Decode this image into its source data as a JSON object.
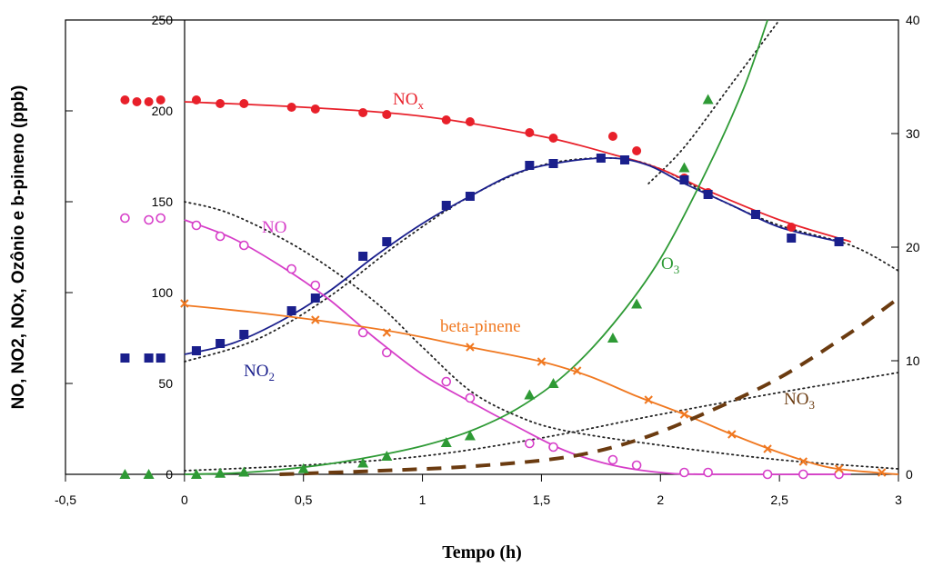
{
  "chart_data": {
    "type": "line",
    "xlabel": "Tempo (h)",
    "ylabel": "NO, NO2, NOx, Ozônio e b-pineno (ppb)",
    "xlim": [
      -0.5,
      3
    ],
    "ylim": [
      0,
      250
    ],
    "y2lim": [
      0,
      40
    ],
    "xticks": [
      "-0,5",
      "0",
      "0,5",
      "1",
      "1,5",
      "2",
      "2,5",
      "3"
    ],
    "yticks": [
      "0",
      "50",
      "100",
      "150",
      "200",
      "250"
    ],
    "y2ticks": [
      "0",
      "10",
      "20",
      "30",
      "40"
    ],
    "series": [
      {
        "name": "NOx",
        "color": "#e8202a",
        "marker": "filled-circle",
        "axis": "left",
        "points": [
          [
            -0.25,
            206
          ],
          [
            -0.2,
            205
          ],
          [
            -0.15,
            205
          ],
          [
            -0.1,
            206
          ],
          [
            0.05,
            206
          ],
          [
            0.15,
            204
          ],
          [
            0.25,
            204
          ],
          [
            0.45,
            202
          ],
          [
            0.55,
            201
          ],
          [
            0.75,
            199
          ],
          [
            0.85,
            198
          ],
          [
            1.1,
            195
          ],
          [
            1.2,
            194
          ],
          [
            1.45,
            188
          ],
          [
            1.55,
            185
          ],
          [
            1.8,
            186
          ],
          [
            1.9,
            178
          ],
          [
            2.1,
            163
          ],
          [
            2.2,
            155
          ],
          [
            2.4,
            143
          ],
          [
            2.55,
            136
          ],
          [
            2.75,
            128
          ]
        ],
        "fit": [
          [
            0,
            205
          ],
          [
            0.5,
            202
          ],
          [
            1,
            197
          ],
          [
            1.5,
            186
          ],
          [
            1.8,
            176
          ],
          [
            2,
            168
          ],
          [
            2.2,
            156
          ],
          [
            2.5,
            140
          ],
          [
            2.8,
            128
          ]
        ]
      },
      {
        "name": "NO2",
        "color": "#1a1f8c",
        "marker": "filled-square",
        "axis": "left",
        "points": [
          [
            -0.25,
            64
          ],
          [
            -0.15,
            64
          ],
          [
            -0.1,
            64
          ],
          [
            0.05,
            68
          ],
          [
            0.15,
            72
          ],
          [
            0.25,
            77
          ],
          [
            0.45,
            90
          ],
          [
            0.55,
            97
          ],
          [
            0.75,
            120
          ],
          [
            0.85,
            128
          ],
          [
            1.1,
            148
          ],
          [
            1.2,
            153
          ],
          [
            1.45,
            170
          ],
          [
            1.55,
            171
          ],
          [
            1.75,
            174
          ],
          [
            1.85,
            173
          ],
          [
            2.1,
            162
          ],
          [
            2.2,
            154
          ],
          [
            2.4,
            143
          ],
          [
            2.55,
            130
          ],
          [
            2.75,
            128
          ]
        ],
        "fit": [
          [
            0,
            66
          ],
          [
            0.2,
            72
          ],
          [
            0.4,
            84
          ],
          [
            0.6,
            100
          ],
          [
            0.8,
            120
          ],
          [
            1,
            138
          ],
          [
            1.2,
            153
          ],
          [
            1.4,
            166
          ],
          [
            1.6,
            172
          ],
          [
            1.8,
            174
          ],
          [
            1.95,
            170
          ],
          [
            2.1,
            160
          ],
          [
            2.3,
            148
          ],
          [
            2.5,
            136
          ],
          [
            2.75,
            128
          ]
        ]
      },
      {
        "name": "NO",
        "color": "#d63ec8",
        "marker": "open-circle",
        "axis": "left",
        "points": [
          [
            -0.25,
            141
          ],
          [
            -0.15,
            140
          ],
          [
            -0.1,
            141
          ],
          [
            0.05,
            137
          ],
          [
            0.15,
            131
          ],
          [
            0.25,
            126
          ],
          [
            0.45,
            113
          ],
          [
            0.55,
            104
          ],
          [
            0.75,
            78
          ],
          [
            0.85,
            67
          ],
          [
            1.1,
            51
          ],
          [
            1.2,
            42
          ],
          [
            1.45,
            17
          ],
          [
            1.55,
            15
          ],
          [
            1.8,
            8
          ],
          [
            1.9,
            5
          ],
          [
            2.1,
            1
          ],
          [
            2.2,
            1
          ],
          [
            2.45,
            0
          ],
          [
            2.6,
            0
          ],
          [
            2.75,
            0
          ]
        ],
        "fit": [
          [
            0,
            140
          ],
          [
            0.2,
            130
          ],
          [
            0.4,
            115
          ],
          [
            0.6,
            97
          ],
          [
            0.8,
            75
          ],
          [
            1,
            55
          ],
          [
            1.2,
            40
          ],
          [
            1.4,
            26
          ],
          [
            1.6,
            13
          ],
          [
            1.8,
            5
          ],
          [
            2,
            1
          ],
          [
            2.2,
            0
          ],
          [
            2.8,
            0
          ]
        ]
      },
      {
        "name": "O3",
        "color": "#2e9a35",
        "marker": "filled-triangle",
        "axis": "right",
        "points": [
          [
            -0.25,
            0
          ],
          [
            -0.15,
            0
          ],
          [
            0.05,
            0
          ],
          [
            0.15,
            0.1
          ],
          [
            0.25,
            0.2
          ],
          [
            0.5,
            0.5
          ],
          [
            0.75,
            1
          ],
          [
            0.85,
            1.6
          ],
          [
            1.1,
            2.8
          ],
          [
            1.2,
            3.4
          ],
          [
            1.45,
            7
          ],
          [
            1.55,
            8
          ],
          [
            1.8,
            12
          ],
          [
            1.9,
            15
          ],
          [
            2.1,
            27
          ],
          [
            2.2,
            33
          ]
        ],
        "fit": [
          [
            0,
            0
          ],
          [
            0.2,
            0.1
          ],
          [
            0.4,
            0.4
          ],
          [
            0.6,
            0.9
          ],
          [
            0.8,
            1.6
          ],
          [
            1,
            2.5
          ],
          [
            1.2,
            3.8
          ],
          [
            1.4,
            5.8
          ],
          [
            1.6,
            8.8
          ],
          [
            1.8,
            13.2
          ],
          [
            2,
            19
          ],
          [
            2.2,
            27
          ],
          [
            2.35,
            34
          ],
          [
            2.45,
            40
          ]
        ]
      },
      {
        "name": "beta-pinene",
        "color": "#f07820",
        "marker": "cross",
        "axis": "left",
        "points": [
          [
            0,
            94
          ],
          [
            0.55,
            85
          ],
          [
            0.85,
            78
          ],
          [
            1.2,
            70
          ],
          [
            1.5,
            62
          ],
          [
            1.65,
            57
          ],
          [
            1.95,
            41
          ],
          [
            2.1,
            33
          ],
          [
            2.3,
            22
          ],
          [
            2.45,
            14
          ],
          [
            2.6,
            7
          ],
          [
            2.75,
            3
          ],
          [
            2.93,
            1
          ]
        ],
        "fit": [
          [
            0,
            93
          ],
          [
            0.3,
            89
          ],
          [
            0.6,
            84
          ],
          [
            0.9,
            78
          ],
          [
            1.2,
            70
          ],
          [
            1.5,
            62
          ],
          [
            1.7,
            54
          ],
          [
            1.9,
            43
          ],
          [
            2.1,
            33
          ],
          [
            2.3,
            22
          ],
          [
            2.5,
            12
          ],
          [
            2.7,
            4
          ],
          [
            2.9,
            1
          ],
          [
            3,
            0
          ]
        ]
      },
      {
        "name": "NO3",
        "color": "#6b3b10",
        "marker": "none",
        "axis": "right",
        "fit": [
          [
            0.4,
            0
          ],
          [
            0.8,
            0.3
          ],
          [
            1.2,
            0.7
          ],
          [
            1.6,
            1.5
          ],
          [
            1.9,
            3
          ],
          [
            2.2,
            5.5
          ],
          [
            2.5,
            8.5
          ],
          [
            2.8,
            12.5
          ],
          [
            3,
            15.5
          ]
        ]
      }
    ],
    "model_dotted": [
      [
        [
          0,
          150
        ],
        [
          0.2,
          143
        ],
        [
          0.5,
          123
        ],
        [
          0.8,
          95
        ],
        [
          1,
          70
        ],
        [
          1.2,
          46
        ],
        [
          1.4,
          32
        ],
        [
          1.6,
          24
        ],
        [
          2,
          16
        ],
        [
          2.5,
          8
        ],
        [
          3,
          3
        ]
      ],
      [
        [
          0,
          62
        ],
        [
          0.3,
          74
        ],
        [
          0.6,
          97
        ],
        [
          0.9,
          127
        ],
        [
          1.2,
          153
        ],
        [
          1.5,
          170
        ],
        [
          1.8,
          174
        ],
        [
          2,
          168
        ],
        [
          2.25,
          151
        ],
        [
          2.5,
          137
        ],
        [
          2.8,
          126
        ],
        [
          3,
          112
        ]
      ],
      [
        [
          0,
          2
        ],
        [
          0.5,
          5
        ],
        [
          1,
          10
        ],
        [
          1.5,
          20
        ],
        [
          2,
          33
        ],
        [
          2.5,
          45
        ],
        [
          3,
          56
        ]
      ],
      [
        [
          1.95,
          160
        ],
        [
          2.1,
          180
        ],
        [
          2.3,
          215
        ],
        [
          2.5,
          250
        ]
      ]
    ],
    "series_labels": {
      "NOx": "NO",
      "NOx_sub": "x",
      "NO": "NO",
      "NO2": "NO",
      "NO2_sub": "2",
      "O3": "O",
      "O3_sub": "3",
      "beta": "beta-pinene",
      "NO3": "NO",
      "NO3_sub": "3"
    }
  }
}
